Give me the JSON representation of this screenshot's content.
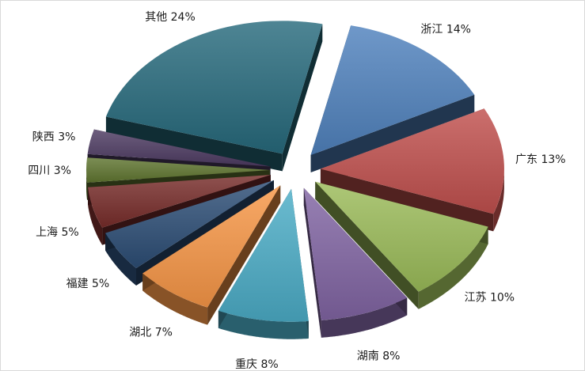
{
  "chart_data": {
    "type": "pie",
    "title": "",
    "exploded": true,
    "style": "3d",
    "legend": "none",
    "slices": [
      {
        "label": "浙江",
        "value": 14,
        "value_text": "14%",
        "color": "#4f81bd"
      },
      {
        "label": "广东",
        "value": 13,
        "value_text": "13%",
        "color": "#c0504d"
      },
      {
        "label": "江苏",
        "value": 10,
        "value_text": "10%",
        "color": "#9bbb59"
      },
      {
        "label": "湖南",
        "value": 8,
        "value_text": "8%",
        "color": "#8064a2"
      },
      {
        "label": "重庆",
        "value": 8,
        "value_text": "8%",
        "color": "#4bacc6"
      },
      {
        "label": "湖北",
        "value": 7,
        "value_text": "7%",
        "color": "#f79646"
      },
      {
        "label": "福建",
        "value": 5,
        "value_text": "5%",
        "color": "#2c4d75"
      },
      {
        "label": "上海",
        "value": 5,
        "value_text": "5%",
        "color": "#772c2a"
      },
      {
        "label": "四川",
        "value": 3,
        "value_text": "3%",
        "color": "#5f7530"
      },
      {
        "label": "陕西",
        "value": 3,
        "value_text": "3%",
        "color": "#4d3b62"
      },
      {
        "label": "其他",
        "value": 24,
        "value_text": "24%",
        "color": "#276a7c"
      }
    ]
  }
}
